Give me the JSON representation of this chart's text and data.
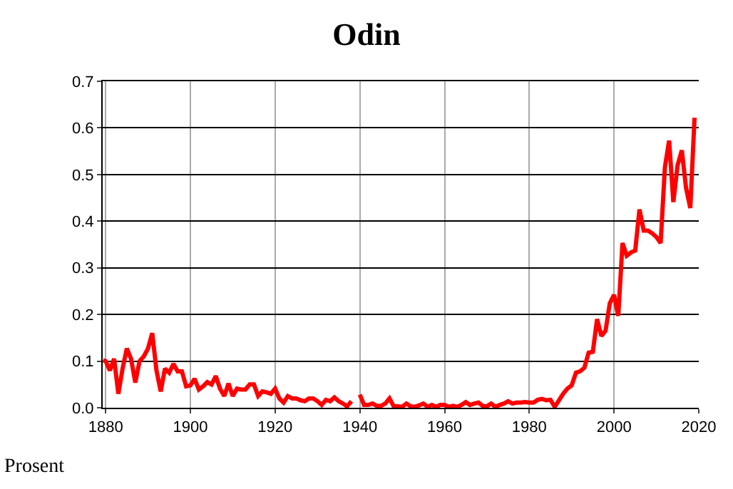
{
  "chart_data": {
    "type": "line",
    "title": "Odin",
    "ylabel": "Prosent",
    "x": [
      1879.4,
      1880,
      1881,
      1882,
      1883,
      1884,
      1885,
      1886,
      1887,
      1888,
      1889,
      1890,
      1891,
      1892,
      1893,
      1894,
      1895,
      1896,
      1897,
      1898,
      1899,
      1900,
      1901,
      1902,
      1903,
      1904,
      1905,
      1906,
      1907,
      1908,
      1909,
      1910,
      1911,
      1912,
      1913,
      1914,
      1915,
      1916,
      1917,
      1918,
      1919,
      1920,
      1921,
      1922,
      1923,
      1924,
      1925,
      1926,
      1927,
      1928,
      1929,
      1930,
      1931,
      1932,
      1933,
      1934,
      1935,
      1936,
      1937,
      1938,
      1939,
      1940,
      1941,
      1942,
      1943,
      1944,
      1945,
      1946,
      1947,
      1948,
      1949,
      1950,
      1951,
      1952,
      1953,
      1954,
      1955,
      1956,
      1957,
      1958,
      1959,
      1960,
      1961,
      1962,
      1963,
      1964,
      1965,
      1966,
      1967,
      1968,
      1969,
      1970,
      1971,
      1972,
      1973,
      1974,
      1975,
      1976,
      1977,
      1978,
      1979,
      1980,
      1981,
      1982,
      1983,
      1984,
      1985,
      1986,
      1987,
      1988,
      1989,
      1990,
      1991,
      1992,
      1993,
      1994,
      1995,
      1996,
      1997,
      1998,
      1999,
      2000,
      2001,
      2002,
      2003,
      2004,
      2005,
      2006,
      2007,
      2008,
      2009,
      2010,
      2011,
      2012,
      2013,
      2014,
      2015,
      2016,
      2017,
      2018,
      2019
    ],
    "series": [
      {
        "color": "#ff0000",
        "values": [
          0.102,
          0.1,
          0.08,
          0.105,
          0.03,
          0.084,
          0.127,
          0.105,
          0.054,
          0.1,
          0.11,
          0.127,
          0.16,
          0.08,
          0.035,
          0.084,
          0.075,
          0.094,
          0.078,
          0.078,
          0.046,
          0.048,
          0.062,
          0.039,
          0.046,
          0.055,
          0.05,
          0.068,
          0.041,
          0.025,
          0.052,
          0.025,
          0.041,
          0.039,
          0.039,
          0.05,
          0.05,
          0.025,
          0.035,
          0.033,
          0.03,
          0.041,
          0.02,
          0.011,
          0.025,
          0.02,
          0.02,
          0.016,
          0.014,
          0.02,
          0.02,
          0.014,
          0.006,
          0.017,
          0.014,
          0.022,
          0.014,
          0.009,
          0.003,
          0.014,
          null,
          0.028,
          0.006,
          0.006,
          0.009,
          0.004,
          0.004,
          0.009,
          0.02,
          0.003,
          0.003,
          0.002,
          0.009,
          0.003,
          0.002,
          0.005,
          0.009,
          0.002,
          0.006,
          0.002,
          0.006,
          0.006,
          0.002,
          0.004,
          0.002,
          0.006,
          0.012,
          0.006,
          0.009,
          0.011,
          0.004,
          0.003,
          0.009,
          0.002,
          0.006,
          0.009,
          0.014,
          0.009,
          0.011,
          0.011,
          0.012,
          0.011,
          0.011,
          0.017,
          0.019,
          0.016,
          0.017,
          0.002,
          0.016,
          0.03,
          0.041,
          0.048,
          0.075,
          0.078,
          0.086,
          0.118,
          0.12,
          0.19,
          0.154,
          0.165,
          0.224,
          0.242,
          0.197,
          0.353,
          0.326,
          0.333,
          0.337,
          0.425,
          0.38,
          0.38,
          0.374,
          0.366,
          0.353,
          0.515,
          0.573,
          0.441,
          0.52,
          0.552,
          0.471,
          0.428,
          0.622
        ]
      }
    ],
    "xlim": [
      1879.3,
      2020
    ],
    "xticks": [
      1880,
      1900,
      1920,
      1940,
      1960,
      1980,
      2000,
      2020
    ],
    "ylim": [
      0,
      0.7
    ],
    "yticks": [
      {
        "value": 0,
        "label": "0.0"
      },
      {
        "value": 0.1,
        "label": "0.1"
      },
      {
        "value": 0.2,
        "label": "0.2"
      },
      {
        "value": 0.3,
        "label": "0.3"
      },
      {
        "value": 0.4,
        "label": "0.4"
      },
      {
        "value": 0.5,
        "label": "0.5"
      },
      {
        "value": 0.6,
        "label": "0.6"
      },
      {
        "value": 0.7,
        "label": "0.7"
      }
    ],
    "grid": true,
    "marker": "none",
    "line_style": "solid"
  }
}
